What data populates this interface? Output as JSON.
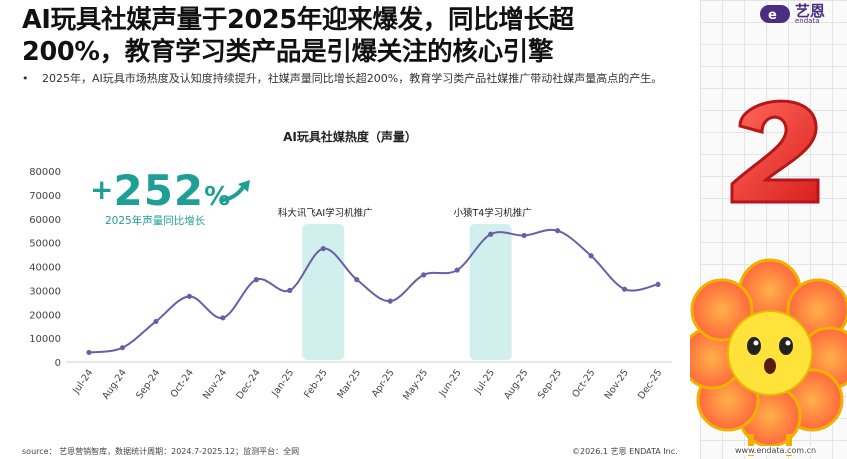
{
  "header": {
    "title_line1": "AI玩具社媒声量于2025年迎来爆发，同比增长超",
    "title_line2": "200%，教育学习类产品是引爆关注的核心引擎",
    "bullet": "•",
    "bullet_text": "2025年，AI玩具市场热度及认知度持续提升，社媒声量同比增长超200%，教育学习类产品社媒推广带动社媒声量高点的产生。"
  },
  "brand": {
    "logo_cn": "艺恩",
    "logo_en": "endata",
    "url": "www.endata.com.cn"
  },
  "highlight": {
    "plus": "+",
    "number": "252",
    "percent": "%",
    "caption": "2025年声量同比增长"
  },
  "colors": {
    "line": "#6a5fa7",
    "accent": "#1f9e96",
    "highlight_band": "#c9ece9"
  },
  "chart_data": {
    "type": "line",
    "title": "AI玩具社媒热度（声量）",
    "categories": [
      "Jul-24",
      "Aug-24",
      "Sep-24",
      "Oct-24",
      "Nov-24",
      "Dec-24",
      "Jan-25",
      "Feb-25",
      "Mar-25",
      "Apr-25",
      "May-25",
      "Jun-25",
      "Jul-25",
      "Aug-25",
      "Sep-25",
      "Oct-25",
      "Nov-25",
      "Dec-25"
    ],
    "values": [
      4000,
      6000,
      17000,
      27500,
      18500,
      34500,
      30000,
      47500,
      34500,
      25500,
      36500,
      38500,
      53500,
      53000,
      55000,
      44500,
      30500,
      32500
    ],
    "ylim": [
      0,
      80000
    ],
    "yticks": [
      "0",
      "10000",
      "20000",
      "30000",
      "40000",
      "50000",
      "60000",
      "70000",
      "80000"
    ],
    "grid": false,
    "annotations": [
      {
        "label": "科大讯飞AI学习机推广",
        "category": "Feb-25"
      },
      {
        "label": "小猿T4学习机推广",
        "category": "Jul-25"
      }
    ]
  },
  "footer": {
    "source": "source：  艺恩营销智库，数据统计周期：2024.7-2025.12；监测平台：全网",
    "copyright": "©2026.1  艺恩 ENDATA Inc."
  }
}
